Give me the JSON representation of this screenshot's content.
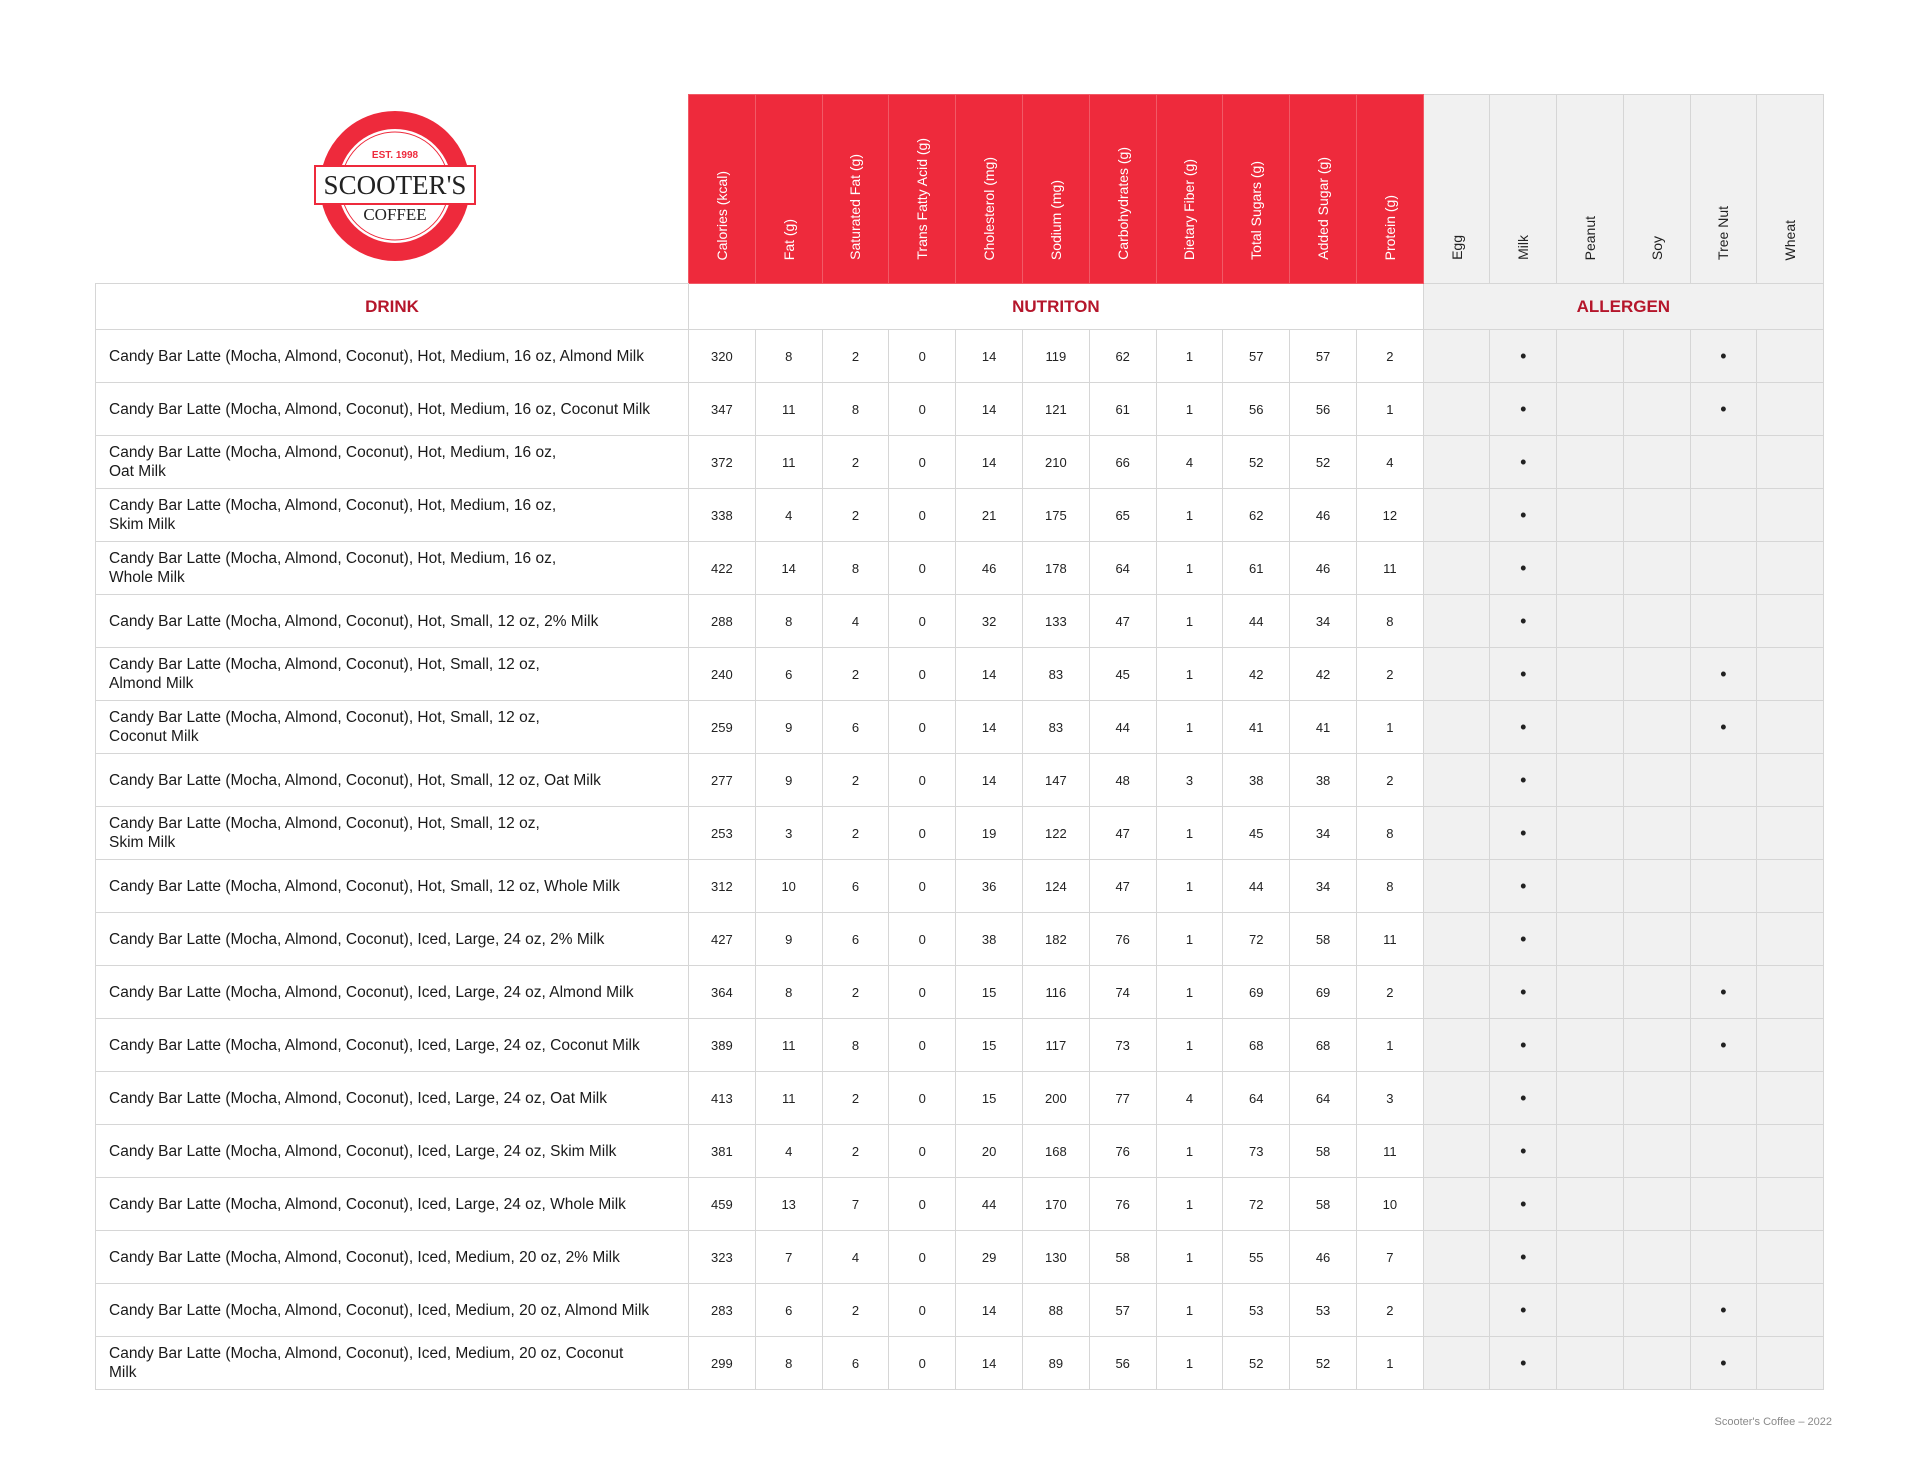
{
  "logo": {
    "est": "EST. 1998",
    "name": "SCOOTER'S",
    "sub": "COFFEE",
    "colors": {
      "red": "#ee2a3c"
    }
  },
  "sections": {
    "drink": "DRINK",
    "nutrition": "NUTRITON",
    "allergen": "ALLERGEN"
  },
  "nutrition_columns": [
    "Calories (kcal)",
    "Fat (g)",
    "Saturated Fat (g)",
    "Trans Fatty Acid (g)",
    "Cholesterol (mg)",
    "Sodium (mg)",
    "Carbohydrates (g)",
    "Dietary Fiber (g)",
    "Total Sugars (g)",
    "Added Sugar (g)",
    "Protein (g)"
  ],
  "allergen_columns": [
    "Egg",
    "Milk",
    "Peanut",
    "Soy",
    "Tree Nut",
    "Wheat"
  ],
  "allergen_mark": "•",
  "rows": [
    {
      "drink": "Candy Bar Latte (Mocha, Almond, Coconut), Hot, Medium, 16 oz, Almond Milk",
      "values": [
        320,
        8,
        2,
        0,
        14,
        119,
        62,
        1,
        57,
        57,
        2
      ],
      "allergens": [
        0,
        1,
        0,
        0,
        1,
        0
      ]
    },
    {
      "drink": "Candy Bar Latte (Mocha, Almond, Coconut), Hot, Medium, 16 oz, Coconut Milk",
      "values": [
        347,
        11,
        8,
        0,
        14,
        121,
        61,
        1,
        56,
        56,
        1
      ],
      "allergens": [
        0,
        1,
        0,
        0,
        1,
        0
      ]
    },
    {
      "drink": "Candy Bar Latte (Mocha, Almond, Coconut), Hot, Medium, 16 oz,\nOat Milk",
      "values": [
        372,
        11,
        2,
        0,
        14,
        210,
        66,
        4,
        52,
        52,
        4
      ],
      "allergens": [
        0,
        1,
        0,
        0,
        0,
        0
      ]
    },
    {
      "drink": "Candy Bar Latte (Mocha, Almond, Coconut), Hot, Medium, 16 oz,\nSkim Milk",
      "values": [
        338,
        4,
        2,
        0,
        21,
        175,
        65,
        1,
        62,
        46,
        12
      ],
      "allergens": [
        0,
        1,
        0,
        0,
        0,
        0
      ]
    },
    {
      "drink": "Candy Bar Latte (Mocha, Almond, Coconut), Hot, Medium, 16 oz,\nWhole Milk",
      "values": [
        422,
        14,
        8,
        0,
        46,
        178,
        64,
        1,
        61,
        46,
        11
      ],
      "allergens": [
        0,
        1,
        0,
        0,
        0,
        0
      ]
    },
    {
      "drink": "Candy Bar Latte (Mocha, Almond, Coconut), Hot, Small, 12 oz, 2% Milk",
      "values": [
        288,
        8,
        4,
        0,
        32,
        133,
        47,
        1,
        44,
        34,
        8
      ],
      "allergens": [
        0,
        1,
        0,
        0,
        0,
        0
      ]
    },
    {
      "drink": "Candy Bar Latte (Mocha, Almond, Coconut), Hot, Small, 12 oz,\nAlmond Milk",
      "values": [
        240,
        6,
        2,
        0,
        14,
        83,
        45,
        1,
        42,
        42,
        2
      ],
      "allergens": [
        0,
        1,
        0,
        0,
        1,
        0
      ]
    },
    {
      "drink": "Candy Bar Latte (Mocha, Almond, Coconut), Hot, Small, 12 oz,\nCoconut Milk",
      "values": [
        259,
        9,
        6,
        0,
        14,
        83,
        44,
        1,
        41,
        41,
        1
      ],
      "allergens": [
        0,
        1,
        0,
        0,
        1,
        0
      ]
    },
    {
      "drink": "Candy Bar Latte (Mocha, Almond, Coconut), Hot, Small, 12 oz, Oat Milk",
      "values": [
        277,
        9,
        2,
        0,
        14,
        147,
        48,
        3,
        38,
        38,
        2
      ],
      "allergens": [
        0,
        1,
        0,
        0,
        0,
        0
      ]
    },
    {
      "drink": "Candy Bar Latte (Mocha, Almond, Coconut), Hot, Small, 12 oz,\nSkim Milk",
      "values": [
        253,
        3,
        2,
        0,
        19,
        122,
        47,
        1,
        45,
        34,
        8
      ],
      "allergens": [
        0,
        1,
        0,
        0,
        0,
        0
      ]
    },
    {
      "drink": "Candy Bar Latte (Mocha, Almond, Coconut), Hot, Small, 12 oz, Whole Milk",
      "values": [
        312,
        10,
        6,
        0,
        36,
        124,
        47,
        1,
        44,
        34,
        8
      ],
      "allergens": [
        0,
        1,
        0,
        0,
        0,
        0
      ]
    },
    {
      "drink": "Candy Bar Latte (Mocha, Almond, Coconut), Iced, Large, 24 oz, 2% Milk",
      "values": [
        427,
        9,
        6,
        0,
        38,
        182,
        76,
        1,
        72,
        58,
        11
      ],
      "allergens": [
        0,
        1,
        0,
        0,
        0,
        0
      ]
    },
    {
      "drink": "Candy Bar Latte (Mocha, Almond, Coconut), Iced, Large, 24 oz, Almond Milk",
      "values": [
        364,
        8,
        2,
        0,
        15,
        116,
        74,
        1,
        69,
        69,
        2
      ],
      "allergens": [
        0,
        1,
        0,
        0,
        1,
        0
      ]
    },
    {
      "drink": "Candy Bar Latte (Mocha, Almond, Coconut), Iced, Large, 24 oz, Coconut Milk",
      "values": [
        389,
        11,
        8,
        0,
        15,
        117,
        73,
        1,
        68,
        68,
        1
      ],
      "allergens": [
        0,
        1,
        0,
        0,
        1,
        0
      ]
    },
    {
      "drink": "Candy Bar Latte (Mocha, Almond, Coconut), Iced, Large, 24 oz, Oat Milk",
      "values": [
        413,
        11,
        2,
        0,
        15,
        200,
        77,
        4,
        64,
        64,
        3
      ],
      "allergens": [
        0,
        1,
        0,
        0,
        0,
        0
      ]
    },
    {
      "drink": "Candy Bar Latte (Mocha, Almond, Coconut), Iced, Large, 24 oz, Skim Milk",
      "values": [
        381,
        4,
        2,
        0,
        20,
        168,
        76,
        1,
        73,
        58,
        11
      ],
      "allergens": [
        0,
        1,
        0,
        0,
        0,
        0
      ]
    },
    {
      "drink": "Candy Bar Latte (Mocha, Almond, Coconut), Iced, Large, 24 oz, Whole Milk",
      "values": [
        459,
        13,
        7,
        0,
        44,
        170,
        76,
        1,
        72,
        58,
        10
      ],
      "allergens": [
        0,
        1,
        0,
        0,
        0,
        0
      ]
    },
    {
      "drink": "Candy Bar Latte (Mocha, Almond, Coconut), Iced, Medium, 20 oz, 2% Milk",
      "values": [
        323,
        7,
        4,
        0,
        29,
        130,
        58,
        1,
        55,
        46,
        7
      ],
      "allergens": [
        0,
        1,
        0,
        0,
        0,
        0
      ]
    },
    {
      "drink": "Candy Bar Latte (Mocha, Almond, Coconut), Iced, Medium, 20 oz, Almond Milk",
      "values": [
        283,
        6,
        2,
        0,
        14,
        88,
        57,
        1,
        53,
        53,
        2
      ],
      "allergens": [
        0,
        1,
        0,
        0,
        1,
        0
      ]
    },
    {
      "drink": "Candy Bar Latte (Mocha, Almond, Coconut), Iced, Medium, 20 oz, Coconut\nMilk",
      "values": [
        299,
        8,
        6,
        0,
        14,
        89,
        56,
        1,
        52,
        52,
        1
      ],
      "allergens": [
        0,
        1,
        0,
        0,
        1,
        0
      ]
    }
  ],
  "footer": "Scooter's Coffee – 2022"
}
